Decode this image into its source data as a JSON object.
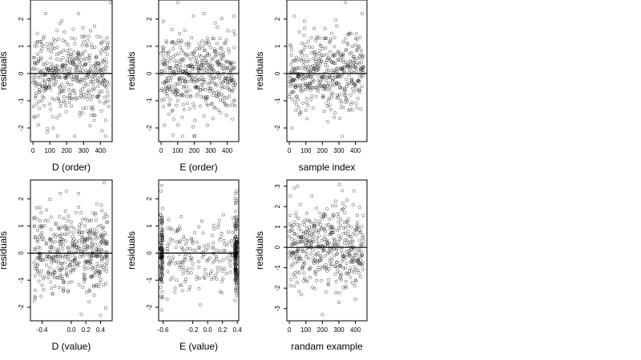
{
  "chart_data": [
    {
      "type": "scatter",
      "xlabel": "D (order)",
      "ylabel": "residuals",
      "xlim": [
        -15,
        470
      ],
      "ylim": [
        -2.5,
        2.7
      ],
      "xticks": [
        0,
        100,
        200,
        300,
        400
      ],
      "yticks": [
        -2,
        -1,
        0,
        1,
        2
      ],
      "xtick_labels": [
        "0",
        "100",
        "200",
        "300",
        "400"
      ],
      "ytick_labels": [
        "-2",
        "-1",
        "0",
        "1",
        "2"
      ],
      "reference_line_y": 0,
      "n_points": 450,
      "x_kind": "index",
      "y_sd": 0.75,
      "annotations": [
        {
          "x": 10,
          "y": -1.6
        },
        {
          "x": 75,
          "y": 2.2
        },
        {
          "x": 120,
          "y": -2.0
        },
        {
          "x": 270,
          "y": 2.2
        },
        {
          "x": 410,
          "y": -2.1
        },
        {
          "x": 430,
          "y": -2.3
        },
        {
          "x": 460,
          "y": 2.6
        }
      ]
    },
    {
      "type": "scatter",
      "xlabel": "E (order)",
      "ylabel": "residuals",
      "xlim": [
        -15,
        470
      ],
      "ylim": [
        -2.5,
        2.7
      ],
      "xticks": [
        0,
        100,
        200,
        300,
        400
      ],
      "yticks": [
        -2,
        -1,
        0,
        1,
        2
      ],
      "xtick_labels": [
        "0",
        "100",
        "200",
        "300",
        "400"
      ],
      "ytick_labels": [
        "-2",
        "-1",
        "0",
        "1",
        "2"
      ],
      "reference_line_y": 0,
      "n_points": 450,
      "x_kind": "index",
      "y_sd": 0.75,
      "annotations": [
        {
          "x": 20,
          "y": -1.9
        },
        {
          "x": 100,
          "y": 2.6
        },
        {
          "x": 130,
          "y": -2.3
        },
        {
          "x": 260,
          "y": 2.2
        },
        {
          "x": 440,
          "y": 2.1
        },
        {
          "x": 280,
          "y": -1.9
        }
      ]
    },
    {
      "type": "scatter",
      "xlabel": "sample index",
      "ylabel": "residuals",
      "xlim": [
        -15,
        470
      ],
      "ylim": [
        -2.5,
        2.7
      ],
      "xticks": [
        0,
        100,
        200,
        300,
        400
      ],
      "yticks": [
        -2,
        -1,
        0,
        1,
        2
      ],
      "xtick_labels": [
        "0",
        "100",
        "200",
        "300",
        "400"
      ],
      "ytick_labels": [
        "-2",
        "-1",
        "0",
        "1",
        "2"
      ],
      "reference_line_y": 0,
      "n_points": 450,
      "x_kind": "index",
      "y_sd": 0.75,
      "annotations": [
        {
          "x": 340,
          "y": 2.6
        },
        {
          "x": 15,
          "y": -2.0
        },
        {
          "x": 320,
          "y": -2.3
        },
        {
          "x": 440,
          "y": 2.2
        },
        {
          "x": 30,
          "y": 2.1
        }
      ]
    },
    {
      "type": "scatter",
      "xlabel": "D (value)",
      "ylabel": "residuals",
      "xlim": [
        -0.56,
        0.56
      ],
      "ylim": [
        -2.5,
        2.7
      ],
      "xticks": [
        -0.4,
        0.0,
        0.2,
        0.4
      ],
      "yticks": [
        -2,
        -1,
        0,
        1,
        2
      ],
      "xtick_labels": [
        "-0.4",
        "0.0",
        "0.2",
        "0.4"
      ],
      "ytick_labels": [
        "-2",
        "-1",
        "0",
        "1",
        "2"
      ],
      "reference_line_y": 0,
      "n_points": 450,
      "x_kind": "uniform",
      "x_range": [
        -0.52,
        0.5
      ],
      "y_sd": 0.75,
      "annotations": [
        {
          "x": 0.45,
          "y": 2.6
        },
        {
          "x": -0.5,
          "y": -1.6
        },
        {
          "x": 0.4,
          "y": -2.3
        },
        {
          "x": -0.15,
          "y": 2.2
        },
        {
          "x": 0.1,
          "y": 2.2
        }
      ]
    },
    {
      "type": "scatter",
      "xlabel": "E (value)",
      "ylabel": "residuals",
      "xlim": [
        -0.66,
        0.42
      ],
      "ylim": [
        -2.5,
        2.7
      ],
      "xticks": [
        -0.6,
        -0.2,
        0.0,
        0.2,
        0.4
      ],
      "yticks": [
        -2,
        -1,
        0,
        1,
        2
      ],
      "xtick_labels": [
        "-0.6",
        "-0.2",
        "0.0",
        "0.2",
        "0.4"
      ],
      "ytick_labels": [
        "-2",
        "-1",
        "0",
        "1",
        "2"
      ],
      "reference_line_y": 0,
      "n_points": 450,
      "x_kind": "clustered",
      "clusters": [
        -0.62,
        0.38
      ],
      "y_sd": 0.75,
      "annotations": [
        {
          "x": -0.62,
          "y": 2.5
        },
        {
          "x": -0.62,
          "y": -2.1
        },
        {
          "x": 0.38,
          "y": 2.2
        },
        {
          "x": -0.1,
          "y": -1.9
        },
        {
          "x": 0.38,
          "y": -1.4
        }
      ]
    },
    {
      "type": "scatter",
      "xlabel": "randam example",
      "ylabel": "residuals",
      "xlim": [
        -15,
        470
      ],
      "ylim": [
        -3.6,
        3.3
      ],
      "xticks": [
        0,
        100,
        200,
        300,
        400
      ],
      "yticks": [
        -3,
        -2,
        -1,
        0,
        1,
        2,
        3
      ],
      "xtick_labels": [
        "0",
        "100",
        "200",
        "300",
        "400"
      ],
      "ytick_labels": [
        "-3",
        "-2",
        "-1",
        "0",
        "1",
        "2",
        "3"
      ],
      "reference_line_y": 0,
      "n_points": 450,
      "x_kind": "index",
      "y_sd": 1.0,
      "annotations": [
        {
          "x": 30,
          "y": 2.9
        },
        {
          "x": 200,
          "y": -3.3
        },
        {
          "x": 300,
          "y": -2.7
        },
        {
          "x": 50,
          "y": 3.0
        }
      ]
    }
  ]
}
